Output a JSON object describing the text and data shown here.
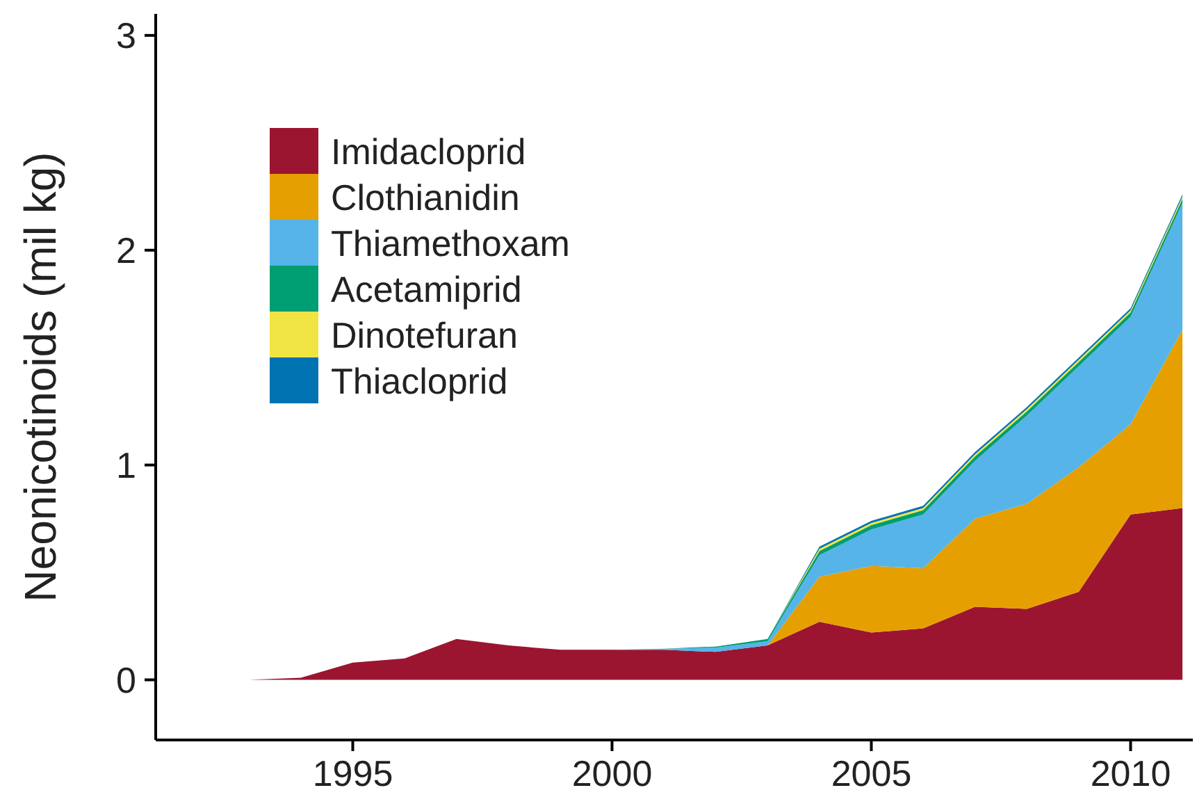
{
  "chart_data": {
    "type": "area",
    "stacked": true,
    "ylabel": "Neonicotinoids (mil kg)",
    "x": [
      1993,
      1994,
      1995,
      1996,
      1997,
      1998,
      1999,
      2000,
      2001,
      2002,
      2003,
      2004,
      2005,
      2006,
      2007,
      2008,
      2009,
      2010,
      2011
    ],
    "series": [
      {
        "name": "Imidacloprid",
        "color": "#9b1530",
        "values": [
          0,
          0.01,
          0.08,
          0.1,
          0.19,
          0.16,
          0.14,
          0.14,
          0.14,
          0.13,
          0.16,
          0.27,
          0.22,
          0.24,
          0.34,
          0.33,
          0.41,
          0.77,
          0.8
        ]
      },
      {
        "name": "Clothianidin",
        "color": "#e69f00",
        "values": [
          0,
          0,
          0,
          0,
          0,
          0,
          0,
          0,
          0,
          0,
          0,
          0.21,
          0.31,
          0.28,
          0.41,
          0.49,
          0.58,
          0.42,
          0.83
        ]
      },
      {
        "name": "Thiamethoxam",
        "color": "#56b4e9",
        "values": [
          0,
          0,
          0,
          0,
          0,
          0,
          0,
          0,
          0.005,
          0.02,
          0.02,
          0.1,
          0.17,
          0.25,
          0.27,
          0.41,
          0.47,
          0.5,
          0.59
        ]
      },
      {
        "name": "Acetamiprid",
        "color": "#009e73",
        "values": [
          0,
          0,
          0,
          0,
          0,
          0,
          0,
          0,
          0,
          0.005,
          0.01,
          0.02,
          0.02,
          0.02,
          0.02,
          0.02,
          0.02,
          0.02,
          0.02
        ]
      },
      {
        "name": "Dinotefuran",
        "color": "#f0e442",
        "values": [
          0,
          0,
          0,
          0,
          0,
          0,
          0,
          0,
          0,
          0,
          0,
          0.01,
          0.01,
          0.01,
          0.01,
          0.01,
          0.01,
          0.01,
          0.01
        ]
      },
      {
        "name": "Thiacloprid",
        "color": "#0072b2",
        "values": [
          0,
          0,
          0,
          0,
          0,
          0,
          0,
          0,
          0,
          0,
          0,
          0.01,
          0.01,
          0.01,
          0.01,
          0.01,
          0.01,
          0.01,
          0.01
        ]
      }
    ],
    "xlim": [
      1991.2,
      2011.2
    ],
    "xticks": [
      1995,
      2000,
      2005,
      2010
    ],
    "ylim": [
      -0.28,
      3.1
    ],
    "yticks": [
      0,
      1,
      2,
      3
    ],
    "legend": "top left"
  }
}
